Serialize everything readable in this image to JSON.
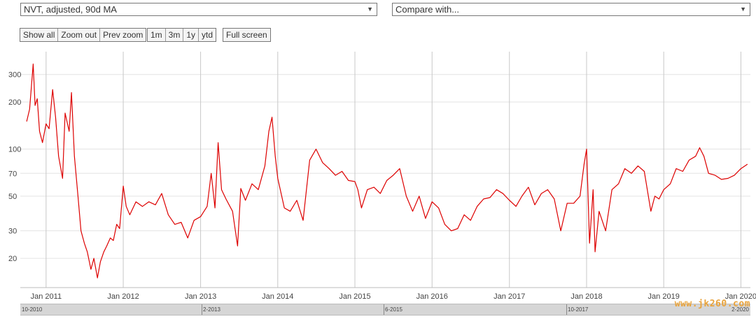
{
  "selects": {
    "metric": "NVT, adjusted, 90d MA",
    "compare": "Compare with...",
    "arrow_icon": "triangle-down"
  },
  "zoom_buttons": [
    "Show all",
    "Zoom out",
    "Prev zoom"
  ],
  "range_buttons": [
    "1m",
    "3m",
    "1y",
    "ytd"
  ],
  "fullscreen_label": "Full screen",
  "navigator": {
    "labels": [
      "10-2010",
      "2-2013",
      "6-2015",
      "10-2017",
      "2-2020"
    ]
  },
  "watermark": "www.jk260.com",
  "colors": {
    "line": "#dd0000",
    "grid": "#e3e3e3",
    "vgrid": "#c8c8c8"
  },
  "chart_data": {
    "type": "line",
    "yscale": "log",
    "ylim": [
      13,
      420
    ],
    "yticks": [
      20,
      30,
      50,
      70,
      100,
      200,
      300
    ],
    "xlim": [
      "2010-09-01",
      "2020-02-15"
    ],
    "xticks": [
      {
        "date": "2011-01-01",
        "label": "Jan 2011"
      },
      {
        "date": "2012-01-01",
        "label": "Jan 2012"
      },
      {
        "date": "2013-01-01",
        "label": "Jan 2013"
      },
      {
        "date": "2014-01-01",
        "label": "Jan 2014"
      },
      {
        "date": "2015-01-01",
        "label": "Jan 2015"
      },
      {
        "date": "2016-01-01",
        "label": "Jan 2016"
      },
      {
        "date": "2017-01-01",
        "label": "Jan 2017"
      },
      {
        "date": "2018-01-01",
        "label": "Jan 2018"
      },
      {
        "date": "2019-01-01",
        "label": "Jan 2019"
      },
      {
        "date": "2020-01-01",
        "label": "Jan 2020"
      }
    ],
    "grid": true,
    "series": [
      {
        "x": [
          "2010-10-01",
          "2010-10-15",
          "2010-11-01",
          "2010-11-10",
          "2010-11-20",
          "2010-12-01",
          "2010-12-15",
          "2011-01-01",
          "2011-01-15",
          "2011-02-01",
          "2011-02-15",
          "2011-03-01",
          "2011-03-20",
          "2011-04-01",
          "2011-04-20",
          "2011-05-01",
          "2011-05-15",
          "2011-06-01",
          "2011-06-15",
          "2011-07-01",
          "2011-07-15",
          "2011-08-01",
          "2011-08-15",
          "2011-09-01",
          "2011-09-15",
          "2011-10-01",
          "2011-10-15",
          "2011-11-01",
          "2011-11-15",
          "2011-12-01",
          "2011-12-15",
          "2012-01-01",
          "2012-01-15",
          "2012-02-01",
          "2012-03-01",
          "2012-04-01",
          "2012-05-01",
          "2012-06-01",
          "2012-07-01",
          "2012-08-01",
          "2012-09-01",
          "2012-10-01",
          "2012-11-01",
          "2012-12-01",
          "2013-01-01",
          "2013-02-01",
          "2013-02-20",
          "2013-03-10",
          "2013-03-25",
          "2013-04-10",
          "2013-05-01",
          "2013-06-01",
          "2013-06-25",
          "2013-07-10",
          "2013-08-01",
          "2013-09-01",
          "2013-10-01",
          "2013-11-01",
          "2013-11-20",
          "2013-12-05",
          "2013-12-20",
          "2014-01-01",
          "2014-02-01",
          "2014-03-01",
          "2014-04-01",
          "2014-05-01",
          "2014-06-01",
          "2014-07-01",
          "2014-08-01",
          "2014-09-01",
          "2014-10-01",
          "2014-11-01",
          "2014-12-01",
          "2015-01-01",
          "2015-01-15",
          "2015-02-01",
          "2015-03-01",
          "2015-04-01",
          "2015-05-01",
          "2015-06-01",
          "2015-07-01",
          "2015-08-01",
          "2015-09-01",
          "2015-10-01",
          "2015-11-01",
          "2015-12-01",
          "2016-01-01",
          "2016-02-01",
          "2016-03-01",
          "2016-04-01",
          "2016-05-01",
          "2016-06-01",
          "2016-07-01",
          "2016-08-01",
          "2016-09-01",
          "2016-10-01",
          "2016-11-01",
          "2016-12-01",
          "2017-01-01",
          "2017-02-01",
          "2017-03-01",
          "2017-04-01",
          "2017-05-01",
          "2017-06-01",
          "2017-07-01",
          "2017-08-01",
          "2017-09-01",
          "2017-10-01",
          "2017-11-01",
          "2017-12-01",
          "2017-12-20",
          "2018-01-01",
          "2018-01-15",
          "2018-02-01",
          "2018-02-10",
          "2018-03-01",
          "2018-04-01",
          "2018-05-01",
          "2018-06-01",
          "2018-07-01",
          "2018-08-01",
          "2018-09-01",
          "2018-10-01",
          "2018-11-01",
          "2018-11-20",
          "2018-12-10",
          "2019-01-01",
          "2019-02-01",
          "2019-03-01",
          "2019-04-01",
          "2019-05-01",
          "2019-06-01",
          "2019-06-20",
          "2019-07-10",
          "2019-08-01",
          "2019-09-01",
          "2019-10-01",
          "2019-11-01",
          "2019-12-01",
          "2020-01-01",
          "2020-02-01"
        ],
        "y": [
          150,
          180,
          350,
          190,
          210,
          130,
          110,
          145,
          135,
          240,
          160,
          90,
          65,
          170,
          130,
          230,
          90,
          50,
          30,
          25,
          22,
          17,
          20,
          15,
          19,
          22,
          24,
          27,
          26,
          33,
          31,
          58,
          43,
          38,
          46,
          43,
          46,
          44,
          52,
          38,
          33,
          34,
          27,
          35,
          37,
          43,
          70,
          42,
          110,
          55,
          48,
          40,
          24,
          56,
          47,
          60,
          55,
          78,
          130,
          160,
          90,
          65,
          42,
          40,
          47,
          35,
          85,
          100,
          82,
          75,
          68,
          72,
          63,
          62,
          55,
          42,
          55,
          57,
          52,
          63,
          68,
          75,
          50,
          40,
          50,
          36,
          46,
          42,
          33,
          30,
          31,
          38,
          35,
          43,
          48,
          49,
          55,
          52,
          47,
          43,
          50,
          57,
          44,
          52,
          55,
          48,
          30,
          45,
          45,
          50,
          80,
          100,
          25,
          55,
          22,
          40,
          30,
          55,
          60,
          75,
          70,
          78,
          72,
          40,
          50,
          48,
          55,
          60,
          75,
          72,
          85,
          90,
          102,
          90,
          70,
          68,
          64,
          65,
          68,
          75,
          80
        ]
      }
    ]
  }
}
